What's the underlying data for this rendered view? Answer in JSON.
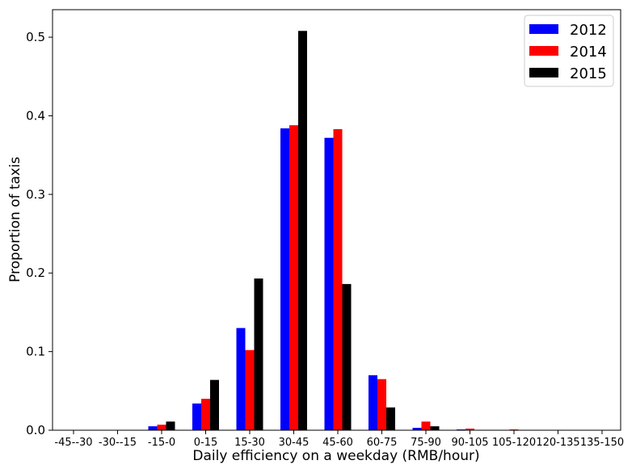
{
  "chart_data": {
    "type": "bar",
    "xlabel": "Daily efficiency on a weekday (RMB/hour)",
    "ylabel": "Proportion of taxis",
    "ylim": [
      0,
      0.535
    ],
    "yticks": [
      "0.0",
      "0.1",
      "0.2",
      "0.3",
      "0.4",
      "0.5"
    ],
    "categories": [
      "-45--30",
      "-30--15",
      "-15-0",
      "0-15",
      "15-30",
      "30-45",
      "45-60",
      "60-75",
      "75-90",
      "90-105",
      "105-120",
      "120-135",
      "135-150"
    ],
    "series": [
      {
        "name": "2012",
        "color": "#0000ff",
        "values": [
          0,
          0,
          0.005,
          0.034,
          0.13,
          0.384,
          0.372,
          0.07,
          0.003,
          0.001,
          0,
          0,
          0
        ]
      },
      {
        "name": "2014",
        "color": "#ff0000",
        "values": [
          0,
          0,
          0.007,
          0.04,
          0.102,
          0.388,
          0.383,
          0.065,
          0.011,
          0.002,
          0.001,
          0,
          0
        ]
      },
      {
        "name": "2015",
        "color": "#000000",
        "values": [
          0,
          0,
          0.011,
          0.064,
          0.193,
          0.508,
          0.186,
          0.029,
          0.005,
          0,
          0,
          0,
          0
        ]
      }
    ],
    "legend": "top-right",
    "grid": false
  }
}
